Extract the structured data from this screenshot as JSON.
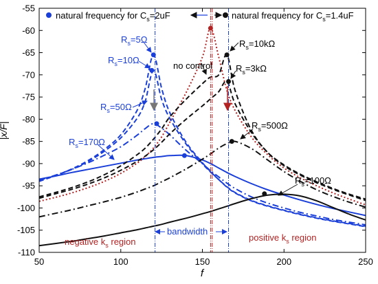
{
  "chart_data": {
    "type": "line",
    "xlabel": "f",
    "ylabel": "|x/F|",
    "xlim": [
      50,
      250
    ],
    "ylim": [
      -110,
      -55
    ],
    "xticks": [
      50,
      100,
      150,
      200,
      250
    ],
    "yticks": [
      -55,
      -60,
      -65,
      -70,
      -75,
      -80,
      -85,
      -90,
      -95,
      -100,
      -105,
      -110
    ],
    "x": [
      50,
      60,
      70,
      80,
      90,
      100,
      110,
      115,
      120,
      125,
      130,
      140,
      150,
      155,
      160,
      165,
      170,
      180,
      190,
      200,
      210,
      220,
      230,
      240,
      250
    ],
    "series": [
      {
        "name": "no control",
        "color": "#b22222",
        "dash": "dotted",
        "values": [
          -98.5,
          -97.6,
          -96.6,
          -95.4,
          -94.0,
          -92.2,
          -89.9,
          -88.4,
          -86.5,
          -84.0,
          -80.7,
          -74.0,
          -66.0,
          -59.5,
          -66.0,
          -73.5,
          -78.0,
          -84.0,
          -88.0,
          -91.0,
          -93.2,
          -95.0,
          -96.6,
          -98.0,
          -99.3
        ]
      },
      {
        "name": "Rs=5Ω",
        "color": "#1a3fd9",
        "dash": "dashed",
        "values": [
          -94.0,
          -92.7,
          -91.2,
          -89.3,
          -86.8,
          -83.5,
          -78.0,
          -73.0,
          -65.5,
          -73.0,
          -78.5,
          -85.2,
          -89.8,
          -91.8,
          -93.6,
          -95.3,
          -96.6,
          -98.4,
          -99.6,
          -100.6,
          -101.5,
          -102.3,
          -103.0,
          -103.6,
          -104.2
        ]
      },
      {
        "name": "Rs=10Ω",
        "color": "#1a3fd9",
        "dash": "dashed",
        "values": [
          -94.0,
          -92.7,
          -91.3,
          -89.5,
          -87.2,
          -84.2,
          -79.8,
          -75.9,
          -69.0,
          -75.5,
          -79.8,
          -85.6,
          -90.0,
          -91.9,
          -93.6,
          -95.2,
          -96.5,
          -98.3,
          -99.5,
          -100.5,
          -101.4,
          -102.2,
          -102.9,
          -103.5,
          -104.1
        ]
      },
      {
        "name": "Rs=50Ω",
        "color": "#1a3fd9",
        "dash": "dashdot",
        "values": [
          -93.8,
          -92.6,
          -91.3,
          -89.8,
          -88.1,
          -86.2,
          -83.6,
          -82.1,
          -81.0,
          -82.0,
          -83.5,
          -87.0,
          -90.0,
          -91.6,
          -93.0,
          -94.4,
          -95.6,
          -97.5,
          -98.9,
          -100.0,
          -101.0,
          -101.8,
          -102.6,
          -103.2,
          -103.8
        ]
      },
      {
        "name": "Rs=170Ω",
        "color": "#1a3fd9",
        "dash": "solid",
        "values": [
          -93.5,
          -92.8,
          -92.0,
          -91.3,
          -90.6,
          -89.9,
          -89.2,
          -88.9,
          -88.6,
          -88.4,
          -88.2,
          -88.2,
          -89.2,
          -90.0,
          -91.0,
          -92.0,
          -92.9,
          -94.5,
          -95.9,
          -97.1,
          -98.2,
          -99.2,
          -100.1,
          -100.9,
          -101.7
        ]
      },
      {
        "name": "Rs=10kΩ",
        "color": "#111111",
        "dash": "dashed",
        "values": [
          -97.5,
          -96.5,
          -95.4,
          -94.1,
          -92.5,
          -90.5,
          -88.0,
          -86.5,
          -84.5,
          -82.2,
          -79.5,
          -75.5,
          -72.0,
          -70.5,
          -70.0,
          -65.5,
          -73.5,
          -82.5,
          -87.5,
          -90.5,
          -92.6,
          -94.3,
          -95.8,
          -97.1,
          -98.3
        ]
      },
      {
        "name": "Rs=3kΩ",
        "color": "#111111",
        "dash": "dashed",
        "values": [
          -97.8,
          -96.8,
          -95.8,
          -94.6,
          -93.2,
          -91.5,
          -89.5,
          -88.3,
          -86.9,
          -85.2,
          -83.3,
          -80.0,
          -77.0,
          -75.4,
          -73.8,
          -71.5,
          -76.5,
          -83.0,
          -87.5,
          -90.3,
          -92.4,
          -94.1,
          -95.6,
          -96.9,
          -98.0
        ]
      },
      {
        "name": "Rs=500Ω",
        "color": "#111111",
        "dash": "dashdot",
        "values": [
          -102.0,
          -101.2,
          -100.4,
          -99.5,
          -98.6,
          -97.6,
          -96.4,
          -95.7,
          -95.0,
          -94.1,
          -93.2,
          -91.2,
          -89.0,
          -87.8,
          -86.5,
          -85.5,
          -85.0,
          -86.6,
          -89.2,
          -91.8,
          -94.0,
          -95.9,
          -97.4,
          -98.7,
          -99.8
        ]
      },
      {
        "name": "Rs=100Ω",
        "color": "#111111",
        "dash": "solid",
        "values": [
          -108.5,
          -108.0,
          -107.5,
          -106.9,
          -106.3,
          -105.6,
          -104.9,
          -104.5,
          -104.1,
          -103.7,
          -103.2,
          -102.3,
          -101.3,
          -100.8,
          -100.2,
          -99.6,
          -99.0,
          -97.9,
          -97.1,
          -96.9,
          -97.3,
          -98.4,
          -99.9,
          -101.4,
          -102.7
        ]
      }
    ],
    "peak_markers": [
      {
        "series": "Rs=5Ω",
        "x": 120,
        "y": -65.5
      },
      {
        "series": "Rs=10Ω",
        "x": 119,
        "y": -69.0
      },
      {
        "series": "Rs=50Ω",
        "x": 122,
        "y": -81.0
      },
      {
        "series": "Rs=170Ω",
        "x": 139,
        "y": -88.2
      },
      {
        "series": "no control",
        "x": 155,
        "y": -59.5
      },
      {
        "series": "Rs=10kΩ",
        "x": 165,
        "y": -65.5
      },
      {
        "series": "Rs=3kΩ",
        "x": 166,
        "y": -71.5
      },
      {
        "series": "Rs=500Ω",
        "x": 168,
        "y": -85.0
      },
      {
        "series": "Rs=100Ω",
        "x": 188,
        "y": -96.8
      }
    ],
    "vertical_lines": [
      {
        "x": 121,
        "color": "#1a3fd9"
      },
      {
        "x": 155,
        "color": "#b22222"
      },
      {
        "x": 156,
        "color": "#b22222"
      },
      {
        "x": 166,
        "color": "#1a3fd9"
      }
    ],
    "legend": {
      "left": {
        "text": "natural frequency for C",
        "sub": "s",
        "value": "=2uF"
      },
      "right": {
        "text": "natural frequency for C",
        "sub": "s",
        "value": "=1.4uF"
      }
    },
    "labels": {
      "no_control": "no control",
      "rs5": {
        "main": "R",
        "sub": "s",
        "tail": "=5Ω"
      },
      "rs10": {
        "main": "R",
        "sub": "s",
        "tail": "=10Ω"
      },
      "rs50": {
        "main": "R",
        "sub": "s",
        "tail": "=50Ω"
      },
      "rs170": {
        "main": "R",
        "sub": "s",
        "tail": "=170Ω"
      },
      "rs10k": {
        "main": "R",
        "sub": "s",
        "tail": "=10kΩ"
      },
      "rs3k": {
        "main": "R",
        "sub": "s",
        "tail": "=3kΩ"
      },
      "rs500": {
        "main": "R",
        "sub": "s",
        "tail": "=500Ω"
      },
      "rs100": {
        "main": "R",
        "sub": "s",
        "tail": "=100Ω"
      },
      "bandwidth": "bandwidth",
      "negative_region": {
        "pre": "negative k",
        "sub": "s",
        "post": " region"
      },
      "positive_region": {
        "pre": "positive k",
        "sub": "s",
        "post": " region"
      }
    },
    "grid": false,
    "colors": {
      "blue": "#1a3fd9",
      "black": "#111111",
      "red": "#b22222"
    }
  }
}
